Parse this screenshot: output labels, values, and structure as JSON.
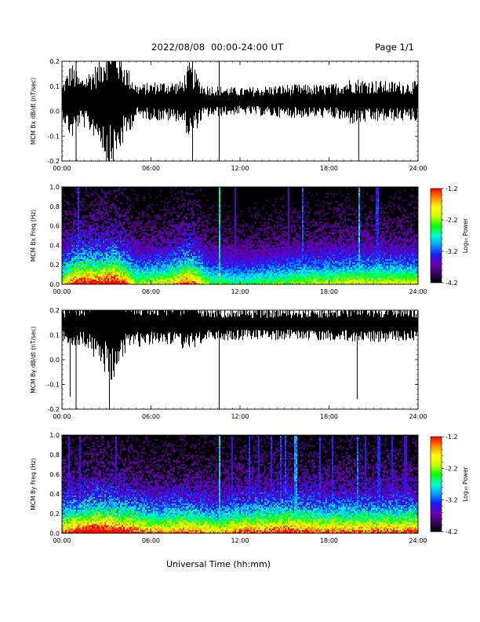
{
  "header": {
    "title": "2022/08/08  00:00-24:00 UT",
    "page": "Page 1/1"
  },
  "x_axis_label": "Universal Time (hh:mm)",
  "colors": {
    "trace": "#000000",
    "spectrogram_background": "#000000",
    "colormap": [
      "#000000",
      "#3b0063",
      "#6a00b8",
      "#1a1aff",
      "#00a0ff",
      "#00ffd0",
      "#00ff00",
      "#c8ff00",
      "#ffff00",
      "#ff8c00",
      "#ff0000"
    ]
  },
  "chart_data": [
    {
      "type": "line",
      "panel": "bx-dbdt",
      "ylabel": "MCM Bx dB/dt (nT/sec)",
      "xlim_hours": [
        0,
        24
      ],
      "ylim": [
        -0.2,
        0.2
      ],
      "y_ticks": [
        "-0.2",
        "-0.1",
        "0.0",
        "0.1",
        "0.2"
      ],
      "x_ticks": [
        "00:00",
        "06:00",
        "12:00",
        "18:00",
        "24:00"
      ],
      "baseline": 0.04,
      "noise_amplitude_profile": [
        {
          "hour": 0,
          "amp": 0.05
        },
        {
          "hour": 0.6,
          "amp": 0.12
        },
        {
          "hour": 1.2,
          "amp": 0.07
        },
        {
          "hour": 2.5,
          "amp": 0.12
        },
        {
          "hour": 3.3,
          "amp": 0.22
        },
        {
          "hour": 4.0,
          "amp": 0.14
        },
        {
          "hour": 5.0,
          "amp": 0.05
        },
        {
          "hour": 6.5,
          "amp": 0.06
        },
        {
          "hour": 8.0,
          "amp": 0.06
        },
        {
          "hour": 8.6,
          "amp": 0.12
        },
        {
          "hour": 9.5,
          "amp": 0.05
        },
        {
          "hour": 12,
          "amp": 0.04
        },
        {
          "hour": 15,
          "amp": 0.05
        },
        {
          "hour": 18,
          "amp": 0.05
        },
        {
          "hour": 19.5,
          "amp": 0.07
        },
        {
          "hour": 22,
          "amp": 0.06
        },
        {
          "hour": 24,
          "amp": 0.06
        }
      ],
      "spikes": [
        {
          "hour": 0.95,
          "min": -0.2,
          "max": 0.2
        },
        {
          "hour": 10.6,
          "min": -0.2,
          "max": 0.2
        },
        {
          "hour": 20.0,
          "min": -0.2,
          "max": 0.05
        },
        {
          "hour": 3.0,
          "min": -0.2,
          "max": 0.2
        },
        {
          "hour": 8.8,
          "min": -0.2,
          "max": 0.2
        }
      ]
    },
    {
      "type": "heatmap",
      "panel": "bx-spectrogram",
      "ylabel": "MCM Bx Freq (Hz)",
      "xlim_hours": [
        0,
        24
      ],
      "ylim": [
        0,
        1.0
      ],
      "y_ticks": [
        "0.0",
        "0.2",
        "0.4",
        "0.6",
        "0.8",
        "1.0"
      ],
      "x_ticks": [
        "00:00",
        "06:00",
        "12:00",
        "18:00",
        "24:00"
      ],
      "colorbar_label": "Log₁₀ Power",
      "colorbar_ticks": [
        "-1.2",
        "-2.2",
        "-3.2",
        "-4.2"
      ],
      "color_range": [
        -4.2,
        -1.2
      ],
      "activity_profile": [
        {
          "hour": 0,
          "level": 0.55
        },
        {
          "hour": 1.0,
          "level": 0.8
        },
        {
          "hour": 2.5,
          "level": 0.75
        },
        {
          "hour": 3.5,
          "level": 0.85
        },
        {
          "hour": 5.0,
          "level": 0.5
        },
        {
          "hour": 7.0,
          "level": 0.55
        },
        {
          "hour": 8.5,
          "level": 0.75
        },
        {
          "hour": 10,
          "level": 0.45
        },
        {
          "hour": 12,
          "level": 0.4
        },
        {
          "hour": 16,
          "level": 0.5
        },
        {
          "hour": 19,
          "level": 0.55
        },
        {
          "hour": 22,
          "level": 0.55
        },
        {
          "hour": 24,
          "level": 0.55
        }
      ],
      "vertical_streaks": [
        {
          "hour": 1.1,
          "strength": 0.55
        },
        {
          "hour": 10.6,
          "strength": 0.9
        },
        {
          "hour": 16.2,
          "strength": 0.6
        },
        {
          "hour": 19.95,
          "strength": 0.8
        },
        {
          "hour": 21.2,
          "strength": 0.55
        },
        {
          "hour": 11.6,
          "strength": 0.4
        },
        {
          "hour": 15.2,
          "strength": 0.4
        }
      ]
    },
    {
      "type": "line",
      "panel": "by-dbdt",
      "ylabel": "MCM By dB/dt (nT/sec)",
      "xlim_hours": [
        0,
        24
      ],
      "ylim": [
        -0.2,
        0.2
      ],
      "y_ticks": [
        "-0.2",
        "-0.1",
        "0.0",
        "0.1",
        "0.2"
      ],
      "x_ticks": [
        "00:00",
        "06:00",
        "12:00",
        "18:00",
        "24:00"
      ],
      "baseline": 0.145,
      "noise_amplitude_profile": [
        {
          "hour": 0,
          "amp": 0.05
        },
        {
          "hour": 0.6,
          "amp": 0.08
        },
        {
          "hour": 1.5,
          "amp": 0.07
        },
        {
          "hour": 2.5,
          "amp": 0.12
        },
        {
          "hour": 3.3,
          "amp": 0.18
        },
        {
          "hour": 4.2,
          "amp": 0.09
        },
        {
          "hour": 6.0,
          "amp": 0.06
        },
        {
          "hour": 8.5,
          "amp": 0.08
        },
        {
          "hour": 10,
          "amp": 0.05
        },
        {
          "hour": 12,
          "amp": 0.05
        },
        {
          "hour": 15,
          "amp": 0.05
        },
        {
          "hour": 18,
          "amp": 0.05
        },
        {
          "hour": 20,
          "amp": 0.06
        },
        {
          "hour": 24,
          "amp": 0.05
        }
      ],
      "spikes": [
        {
          "hour": 0.95,
          "min": -0.2,
          "max": 0.2
        },
        {
          "hour": 10.6,
          "min": -0.2,
          "max": 0.2
        },
        {
          "hour": 19.9,
          "min": -0.16,
          "max": 0.18
        },
        {
          "hour": 3.2,
          "min": -0.2,
          "max": 0.2
        },
        {
          "hour": 0.55,
          "min": -0.15,
          "max": 0.2
        }
      ]
    },
    {
      "type": "heatmap",
      "panel": "by-spectrogram",
      "ylabel": "MCM By Freq (Hz)",
      "xlim_hours": [
        0,
        24
      ],
      "ylim": [
        0,
        1.0
      ],
      "y_ticks": [
        "0.0",
        "0.2",
        "0.4",
        "0.6",
        "0.8",
        "1.0"
      ],
      "x_ticks": [
        "00:00",
        "06:00",
        "12:00",
        "18:00",
        "24:00"
      ],
      "colorbar_label": "Log₁₀ Power",
      "colorbar_ticks": [
        "-1.2",
        "-2.2",
        "-3.2",
        "-4.2"
      ],
      "color_range": [
        -4.2,
        -1.2
      ],
      "activity_profile": [
        {
          "hour": 0,
          "level": 0.7
        },
        {
          "hour": 2.0,
          "level": 0.85
        },
        {
          "hour": 4.0,
          "level": 0.8
        },
        {
          "hour": 6.0,
          "level": 0.65
        },
        {
          "hour": 8.5,
          "level": 0.7
        },
        {
          "hour": 10.5,
          "level": 0.6
        },
        {
          "hour": 12,
          "level": 0.7
        },
        {
          "hour": 15,
          "level": 0.75
        },
        {
          "hour": 18,
          "level": 0.7
        },
        {
          "hour": 21,
          "level": 0.7
        },
        {
          "hour": 24,
          "level": 0.72
        }
      ],
      "vertical_streaks": [
        {
          "hour": 0.4,
          "strength": 0.5
        },
        {
          "hour": 1.2,
          "strength": 0.5
        },
        {
          "hour": 3.6,
          "strength": 0.45
        },
        {
          "hour": 10.6,
          "strength": 0.85
        },
        {
          "hour": 11.4,
          "strength": 0.5
        },
        {
          "hour": 12.6,
          "strength": 0.55
        },
        {
          "hour": 13.2,
          "strength": 0.5
        },
        {
          "hour": 14.1,
          "strength": 0.55
        },
        {
          "hour": 14.7,
          "strength": 0.6
        },
        {
          "hour": 15.0,
          "strength": 0.6
        },
        {
          "hour": 15.7,
          "strength": 0.75
        },
        {
          "hour": 17.3,
          "strength": 0.55
        },
        {
          "hour": 18.2,
          "strength": 0.55
        },
        {
          "hour": 19.9,
          "strength": 0.65
        },
        {
          "hour": 20.4,
          "strength": 0.5
        },
        {
          "hour": 21.3,
          "strength": 0.55
        },
        {
          "hour": 22.2,
          "strength": 0.5
        },
        {
          "hour": 23.1,
          "strength": 0.45
        }
      ]
    }
  ]
}
